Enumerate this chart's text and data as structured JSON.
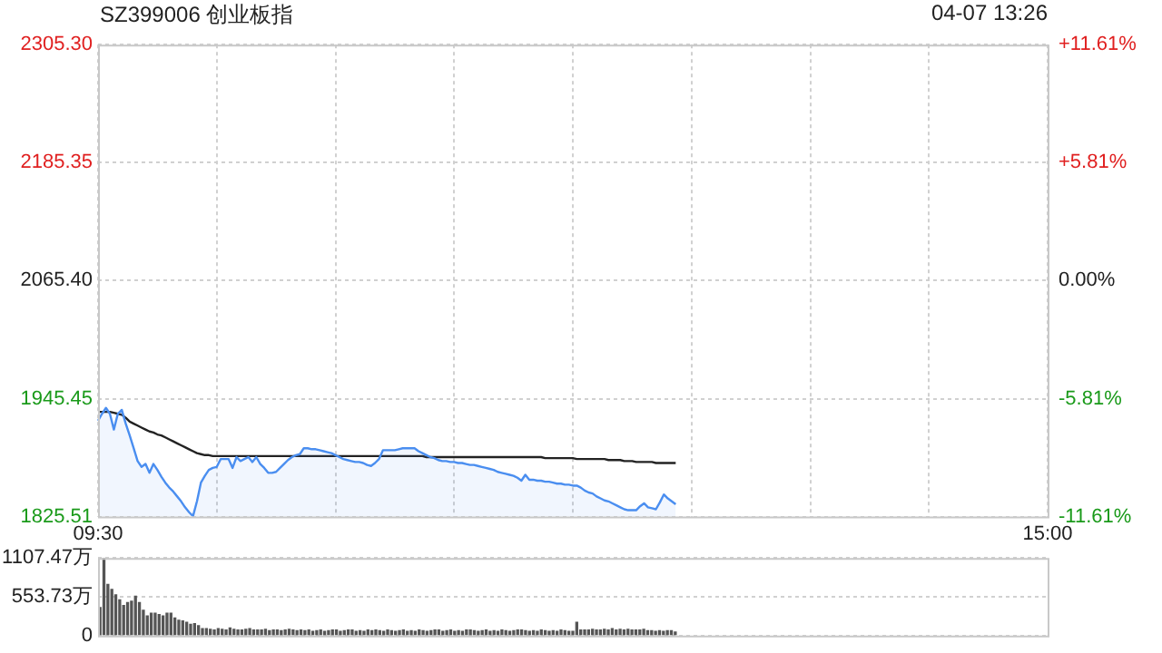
{
  "chart_data": [
    {
      "type": "line",
      "title": "SZ399006 创业板指",
      "annotations": [
        "04-07 13:26"
      ],
      "categories": [
        "09:30",
        null,
        null,
        null,
        null,
        null,
        null,
        null,
        null,
        null,
        null,
        null,
        null,
        null,
        null,
        null,
        null,
        null,
        null,
        null,
        null,
        null,
        null,
        null,
        null,
        null,
        null,
        null,
        null,
        null,
        null,
        null,
        null,
        null,
        null,
        null,
        null,
        null,
        null,
        null,
        null,
        null,
        null,
        null,
        null,
        null,
        null,
        null,
        null,
        null,
        null,
        null,
        null,
        null,
        null,
        null,
        null,
        null,
        null,
        null,
        null,
        null,
        null,
        null,
        null,
        null,
        null,
        null,
        null,
        null,
        null,
        null,
        null,
        null,
        null,
        null,
        null,
        null,
        null,
        null,
        null,
        null,
        null,
        null,
        null,
        null,
        null,
        null,
        null,
        null,
        null,
        null,
        null,
        null,
        null,
        null,
        null,
        null,
        null,
        null,
        null,
        null,
        null,
        null,
        null,
        null,
        null,
        null,
        null,
        null,
        null,
        null,
        null,
        null,
        null,
        null,
        null,
        null,
        null,
        null,
        null,
        null,
        null,
        null,
        null,
        null,
        null,
        null,
        null,
        null,
        null,
        null,
        null,
        null,
        null,
        null,
        null,
        null,
        null,
        null,
        null,
        null,
        null,
        null,
        null,
        null,
        null,
        null,
        null,
        null,
        null,
        null,
        null,
        null,
        null,
        null,
        null,
        null,
        null,
        null,
        null,
        null,
        null,
        null,
        null,
        null,
        null,
        null,
        null,
        null,
        null,
        null,
        null,
        null,
        null,
        null,
        null,
        null,
        null,
        null,
        null,
        null,
        null,
        null,
        null,
        null,
        null,
        null,
        null,
        null,
        null,
        null,
        null,
        null,
        null,
        null,
        null,
        null,
        null,
        null,
        null,
        null,
        null,
        null,
        null,
        null,
        null,
        null,
        null,
        null,
        null,
        null,
        null,
        null,
        null,
        null,
        null,
        null,
        null,
        null,
        null,
        null,
        null,
        null,
        null,
        null,
        null,
        null,
        null,
        null,
        null,
        null,
        null,
        null,
        null,
        null,
        null,
        null,
        null,
        null,
        "15:00"
      ],
      "ylim": [
        1825.51,
        2305.3
      ],
      "yticks": [
        {
          "value": 1825.51,
          "label": "1825.51"
        },
        {
          "value": 1945.45,
          "label": "1945.45"
        },
        {
          "value": 2065.4,
          "label": "2065.40"
        },
        {
          "value": 2185.35,
          "label": "2185.35"
        },
        {
          "value": 2305.3,
          "label": "2305.30"
        }
      ],
      "y2lim": [
        -11.61,
        11.61
      ],
      "y2ticks": [
        {
          "value": -11.61,
          "label": "-11.61%"
        },
        {
          "value": -5.81,
          "label": "-5.81%"
        },
        {
          "value": 0,
          "label": "0.00%"
        },
        {
          "value": 5.81,
          "label": "+5.81%"
        },
        {
          "value": 11.61,
          "label": "+11.61%"
        }
      ],
      "grid": true,
      "series": [
        {
          "type": "area",
          "color": "#4a8ef0",
          "values": [
            1923,
            1930,
            1936,
            1930,
            1914,
            1930,
            1934,
            1920,
            1908,
            1895,
            1882,
            1876,
            1879,
            1870,
            1879,
            1873,
            1866,
            1860,
            1855,
            1851,
            1846,
            1841,
            1835,
            1830,
            1826,
            1841,
            1860,
            1867,
            1873,
            1875,
            1876,
            1884,
            1884,
            1884,
            1875,
            1886,
            1882,
            1884,
            1886,
            1881,
            1886,
            1879,
            1875,
            1870,
            1870,
            1871,
            1875,
            1879,
            1883,
            1886,
            1888,
            1889,
            1895,
            1895,
            1894,
            1894,
            1893,
            1892,
            1891,
            1890,
            1888,
            1886,
            1884,
            1883,
            1882,
            1881,
            1881,
            1880,
            1878,
            1877,
            1880,
            1884,
            1893,
            1893,
            1893,
            1893,
            1894,
            1895,
            1895,
            1895,
            1895,
            1892,
            1890,
            1888,
            1886,
            1885,
            1883,
            1882,
            1882,
            1881,
            1881,
            1880,
            1880,
            1879,
            1878,
            1878,
            1877,
            1876,
            1875,
            1874,
            1873,
            1871,
            1870,
            1869,
            1868,
            1867,
            1865,
            1862,
            1868,
            1863,
            1863,
            1862,
            1862,
            1861,
            1861,
            1860,
            1859,
            1859,
            1858,
            1858,
            1857,
            1857,
            1855,
            1852,
            1850,
            1849,
            1846,
            1844,
            1842,
            1841,
            1839,
            1837,
            1835,
            1833,
            1832,
            1832,
            1832,
            1836,
            1839,
            1835,
            1834,
            1833,
            1840,
            1848,
            1844,
            1841,
            1838,
            null,
            null,
            null,
            null,
            null,
            null,
            null,
            null,
            null,
            null,
            null,
            null,
            null,
            null,
            null,
            null,
            null,
            null,
            null,
            null,
            null,
            null,
            null,
            null,
            null,
            null,
            null,
            null,
            null,
            null,
            null,
            null,
            null,
            null,
            null,
            null,
            null,
            null,
            null,
            null,
            null,
            null,
            null,
            null,
            null,
            null,
            null,
            null,
            null,
            null,
            null,
            null,
            null,
            null,
            null,
            null,
            null,
            null,
            null,
            null,
            null,
            null,
            null,
            null,
            null,
            null,
            null,
            null,
            null,
            null,
            null,
            null,
            null,
            null,
            null,
            null,
            null,
            null,
            null,
            null,
            null,
            null,
            null,
            null,
            null,
            null,
            null,
            null,
            null,
            null,
            null,
            null,
            null,
            null
          ]
        },
        {
          "type": "line",
          "color": "#222222",
          "values": [
            1932,
            1932,
            1932,
            1932,
            1931,
            1930,
            1929,
            1926,
            1922,
            1920,
            1918,
            1916,
            1914,
            1912,
            1911,
            1909,
            1908,
            1906,
            1904,
            1902,
            1900,
            1898,
            1896,
            1894,
            1892,
            1890,
            1889,
            1888,
            1888,
            1887,
            1887,
            1887,
            1887,
            1887,
            1887,
            1887,
            1887,
            1887,
            1887,
            1887,
            1887,
            1887,
            1887,
            1887,
            1887,
            1887,
            1887,
            1887,
            1887,
            1887,
            1887,
            1887,
            1887,
            1887,
            1887,
            1887,
            1887,
            1887,
            1887,
            1887,
            1887,
            1887,
            1887,
            1887,
            1887,
            1887,
            1887,
            1887,
            1887,
            1887,
            1887,
            1887,
            1887,
            1887,
            1887,
            1887,
            1887,
            1887,
            1887,
            1887,
            1887,
            1887,
            1887,
            1886,
            1886,
            1886,
            1886,
            1886,
            1886,
            1886,
            1886,
            1886,
            1886,
            1886,
            1886,
            1886,
            1886,
            1886,
            1886,
            1886,
            1886,
            1886,
            1886,
            1886,
            1886,
            1886,
            1886,
            1886,
            1886,
            1886,
            1886,
            1886,
            1886,
            1885,
            1885,
            1885,
            1885,
            1885,
            1885,
            1885,
            1885,
            1884,
            1884,
            1884,
            1884,
            1884,
            1884,
            1884,
            1884,
            1883,
            1883,
            1883,
            1883,
            1882,
            1882,
            1882,
            1881,
            1881,
            1881,
            1881,
            1881,
            1880,
            1880,
            1880,
            1880,
            1880,
            1880,
            null,
            null,
            null,
            null,
            null,
            null,
            null,
            null,
            null,
            null,
            null,
            null,
            null,
            null,
            null,
            null,
            null,
            null,
            null,
            null,
            null,
            null,
            null,
            null,
            null,
            null,
            null,
            null,
            null,
            null,
            null,
            null,
            null,
            null,
            null,
            null,
            null,
            null,
            null,
            null,
            null,
            null,
            null,
            null,
            null,
            null,
            null,
            null,
            null,
            null,
            null,
            null,
            null,
            null,
            null,
            null,
            null,
            null,
            null,
            null,
            null,
            null,
            null,
            null,
            null,
            null,
            null,
            null,
            null,
            null,
            null,
            null,
            null,
            null,
            null,
            null,
            null,
            null,
            null,
            null,
            null,
            null,
            null,
            null,
            null,
            null,
            null,
            null,
            null,
            null,
            null,
            null,
            null,
            null
          ]
        }
      ]
    },
    {
      "type": "bar",
      "color": "#555555",
      "tick_labels": "y",
      "grid": "y",
      "ylim": [
        0,
        1107.47
      ],
      "yticks": [
        0,
        {
          "value": 553.73,
          "label": "553.73万"
        },
        {
          "value": 1107.47,
          "label": "1107.47万"
        }
      ],
      "categories": [
        null,
        null,
        null,
        null,
        null,
        null,
        null,
        null,
        null,
        null,
        null,
        null,
        null,
        null,
        null,
        null,
        null,
        null,
        null,
        null,
        null,
        null,
        null,
        null,
        null,
        null,
        null,
        null,
        null,
        null,
        null,
        null,
        null,
        null,
        null,
        null,
        null,
        null,
        null,
        null,
        null,
        null,
        null,
        null,
        null,
        null,
        null,
        null,
        null,
        null,
        null,
        null,
        null,
        null,
        null,
        null,
        null,
        null,
        null,
        null,
        null,
        null,
        null,
        null,
        null,
        null,
        null,
        null,
        null,
        null,
        null,
        null,
        null,
        null,
        null,
        null,
        null,
        null,
        null,
        null,
        null,
        null,
        null,
        null,
        null,
        null,
        null,
        null,
        null,
        null,
        null,
        null,
        null,
        null,
        null,
        null,
        null,
        null,
        null,
        null,
        null,
        null,
        null,
        null,
        null,
        null,
        null,
        null,
        null,
        null,
        null,
        null,
        null,
        null,
        null,
        null,
        null,
        null,
        null,
        null,
        null,
        null,
        null,
        null,
        null,
        null,
        null,
        null,
        null,
        null,
        null,
        null,
        null,
        null,
        null,
        null,
        null,
        null,
        null,
        null,
        null,
        null,
        null,
        null,
        null,
        null,
        null,
        null,
        null,
        null,
        null,
        null,
        null,
        null,
        null,
        null,
        null,
        null,
        null,
        null,
        null,
        null,
        null,
        null,
        null,
        null,
        null,
        null,
        null,
        null,
        null,
        null,
        null,
        null,
        null,
        null,
        null,
        null,
        null,
        null,
        null,
        null,
        null,
        null,
        null,
        null,
        null,
        null,
        null,
        null,
        null,
        null,
        null,
        null,
        null,
        null,
        null,
        null,
        null,
        null,
        null,
        null,
        null,
        null,
        null,
        null,
        null,
        null,
        null,
        null,
        null,
        null,
        null,
        null,
        null,
        null,
        null,
        null,
        null,
        null,
        null,
        null,
        null,
        null,
        null,
        null,
        null,
        null,
        null,
        null,
        null,
        null,
        null,
        null,
        null,
        null,
        null,
        null,
        null,
        null,
        null
      ],
      "values": [
        400,
        1100,
        730,
        660,
        580,
        510,
        430,
        470,
        490,
        560,
        470,
        360,
        280,
        320,
        320,
        300,
        280,
        320,
        320,
        250,
        220,
        210,
        190,
        160,
        170,
        140,
        100,
        100,
        90,
        80,
        100,
        90,
        80,
        110,
        90,
        80,
        80,
        90,
        100,
        80,
        80,
        80,
        90,
        70,
        80,
        80,
        70,
        80,
        90,
        80,
        70,
        80,
        70,
        80,
        60,
        70,
        80,
        60,
        70,
        80,
        80,
        60,
        70,
        80,
        80,
        60,
        70,
        60,
        80,
        70,
        80,
        70,
        60,
        80,
        70,
        60,
        70,
        80,
        60,
        70,
        60,
        80,
        70,
        60,
        70,
        80,
        80,
        60,
        70,
        80,
        60,
        70,
        60,
        80,
        80,
        70,
        60,
        70,
        80,
        60,
        70,
        60,
        80,
        70,
        60,
        70,
        80,
        80,
        70,
        60,
        70,
        60,
        80,
        70,
        60,
        70,
        60,
        80,
        70,
        60,
        60,
        190,
        80,
        80,
        80,
        90,
        80,
        80,
        90,
        80,
        100,
        80,
        90,
        80,
        90,
        80,
        80,
        80,
        90,
        70,
        70,
        60,
        70,
        60,
        70,
        70,
        50,
        null,
        null,
        null,
        null,
        null,
        null,
        null,
        null,
        null,
        null,
        null,
        null,
        null,
        null,
        null,
        null,
        null,
        null,
        null,
        null,
        null,
        null,
        null,
        null,
        null,
        null,
        null,
        null,
        null,
        null,
        null,
        null,
        null,
        null,
        null,
        null,
        null,
        null,
        null,
        null,
        null,
        null,
        null,
        null,
        null,
        null,
        null,
        null,
        null,
        null,
        null,
        null,
        null,
        null,
        null,
        null,
        null,
        null,
        null,
        null,
        null,
        null,
        null,
        null,
        null,
        null,
        null,
        null,
        null,
        null,
        null,
        null,
        null,
        null,
        null,
        null,
        null,
        null,
        null,
        null,
        null,
        null,
        null,
        null,
        null,
        null,
        null,
        null,
        null,
        null,
        null,
        null,
        null,
        null
      ]
    }
  ]
}
